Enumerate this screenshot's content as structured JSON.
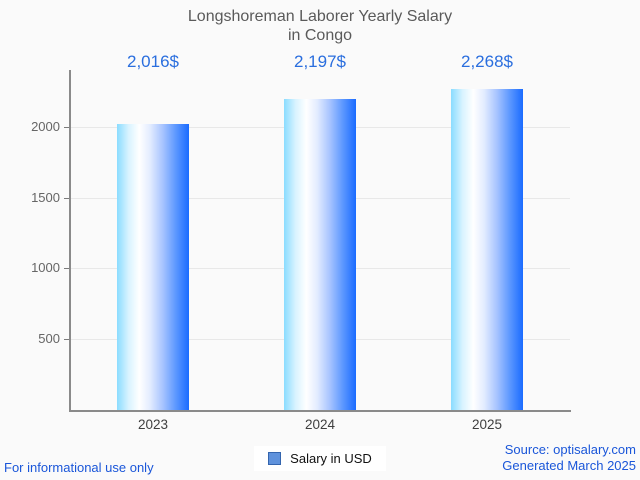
{
  "page": {
    "background_color": "#fafafa",
    "accent_blue": "#2a6ede",
    "footer_link_blue": "#1a56d9",
    "footer_left": "For informational use only",
    "footer_right_line1": "Source: optisalary.com",
    "footer_right_line2": "Generated March 2025"
  },
  "legend": {
    "label": "Salary in USD",
    "marker_icon": "square-icon",
    "marker_color": "#5f92dc",
    "marker_border_color": "#3465ae"
  },
  "chart_data": {
    "type": "bar",
    "title": "Longshoreman Laborer Yearly Salary in Congo",
    "title_lines": [
      "Longshoreman Laborer Yearly Salary",
      "in Congo"
    ],
    "title_color": "#5a5a5a",
    "categories": [
      "2023",
      "2024",
      "2025"
    ],
    "series": [
      {
        "name": "Salary in USD",
        "values": [
          2016,
          2197,
          2268
        ]
      }
    ],
    "values": [
      2016,
      2197,
      2268
    ],
    "value_labels": [
      "2,016$",
      "2,197$",
      "2,268$"
    ],
    "value_label_color": "#2a6ede",
    "xlabel": "",
    "ylabel": "",
    "ylim": [
      0,
      2400
    ],
    "yticks": [
      500,
      1000,
      1500,
      2000
    ],
    "grid": true,
    "legend_position": "bottom",
    "bar_gradient": [
      "#8adcff",
      "#ffffff",
      "#1a6bff"
    ]
  }
}
